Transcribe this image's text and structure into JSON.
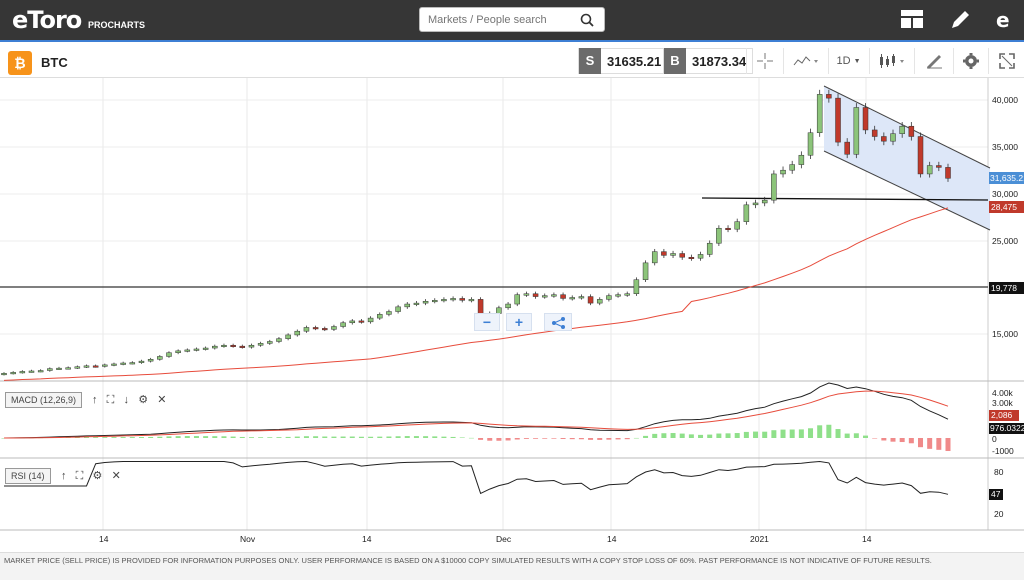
{
  "app": {
    "logo": "eToro",
    "logo_sub": "PROCHARTS"
  },
  "search": {
    "placeholder": "Markets / People search"
  },
  "instrument": {
    "symbol": "BTC",
    "badge": "₿"
  },
  "prices": {
    "sell_tag": "S",
    "sell": "31635.21",
    "buy_tag": "B",
    "buy": "31873.34"
  },
  "toolbar": {
    "timeframe": "1D"
  },
  "price_axis": {
    "ticks": [
      "40,000",
      "35,000",
      "30,000",
      "25,000",
      "15,000"
    ],
    "current_price": "31,635.21",
    "ma_value": "28,475",
    "line_value": "19,778"
  },
  "zoom": {
    "minus": "−",
    "plus": "+"
  },
  "macd": {
    "label": "MACD (12,26,9)",
    "ticks": [
      "4.00k",
      "3.00k",
      "0",
      "-1000"
    ],
    "value1": "2,086",
    "value2": "976.0322"
  },
  "rsi": {
    "label": "RSI (14)",
    "ticks": [
      "80",
      "20"
    ],
    "value": "47"
  },
  "time_axis": [
    "14",
    "Nov",
    "14",
    "Dec",
    "14",
    "2021",
    "14"
  ],
  "footer": "MARKET PRICE (SELL PRICE) IS PROVIDED FOR INFORMATION PURPOSES ONLY. USER PERFORMANCE IS BASED ON A $10000 COPY SIMULATED RESULTS WITH A COPY STOP LOSS OF 60%. PAST PERFORMANCE IS NOT INDICATIVE OF FUTURE RESULTS.",
  "colors": {
    "up": "#8cc47a",
    "down": "#c0392b",
    "accent": "#3d7fd4",
    "ma": "#e74c3c",
    "channel": "#dde7f8"
  },
  "chart_data": {
    "type": "candlestick",
    "series": [
      {
        "closes": [
          10800,
          10900,
          11000,
          11050,
          11100,
          11300,
          11350,
          11400,
          11500,
          11600,
          11550,
          11700,
          11800,
          11900,
          11950,
          12100,
          12300,
          12600,
          13000,
          13200,
          13300,
          13400,
          13500,
          13700,
          13800,
          13700,
          13600,
          13800,
          14000,
          14200,
          14500,
          14900,
          15300,
          15700,
          15600,
          15500,
          15800,
          16200,
          16400,
          16300,
          16700,
          17100,
          17400,
          17900,
          18200,
          18300,
          18500,
          18600,
          18700,
          18800,
          18600,
          18700,
          16600,
          17200,
          17800,
          18200,
          19200,
          19300,
          19000,
          19100,
          19200,
          18800,
          18900,
          19000,
          18300,
          18700,
          19100,
          19200,
          19300,
          20800,
          22600,
          23800,
          23400,
          23600,
          23200,
          23100,
          23500,
          24700,
          26300,
          26200,
          27000,
          28800,
          29000,
          29300,
          32100,
          32500,
          33100,
          34100,
          36500,
          40600,
          40200,
          35500,
          34200,
          39200,
          36800,
          36100,
          35600,
          36400,
          37200,
          36100,
          32100,
          33000,
          32800,
          31635
        ]
      }
    ],
    "moving_average": {
      "end_value": 28475
    },
    "horizontal_lines": [
      29000,
      19778
    ],
    "ylim": [
      11000,
      42000
    ]
  }
}
